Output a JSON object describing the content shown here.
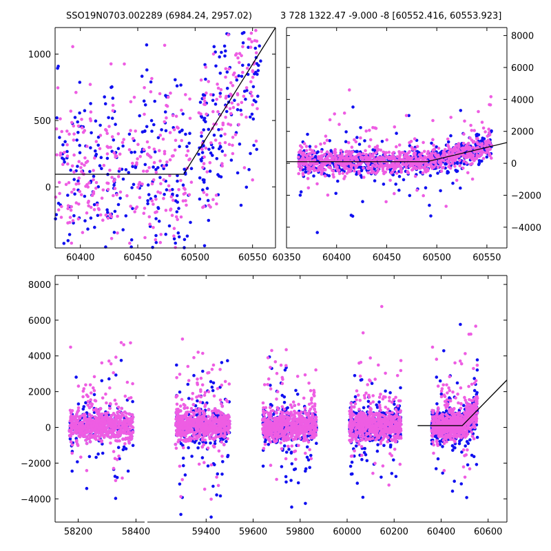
{
  "titles": {
    "left": "SSO19N0703.002289 (6984.24, 2957.02)",
    "right": "3 728 1322.47 -9.000 -8 [60552.416, 60553.923]"
  },
  "colors": {
    "blue": "#1010f0",
    "magenta": "#ee5de3",
    "line": "#000000"
  },
  "chart_data": [
    {
      "type": "scatter",
      "title": "SSO19N0703.002289 (6984.24, 2957.02)",
      "xlim": [
        60378,
        60570
      ],
      "ylim": [
        -460,
        1200
      ],
      "xticks": [
        60400,
        60450,
        60500,
        60550
      ],
      "xtick_labels": [
        "60400",
        "60450",
        "60500",
        "60550"
      ],
      "yticks": [
        0,
        500,
        1000
      ],
      "ytick_labels": [
        "0",
        "500",
        "1000"
      ],
      "series": [
        {
          "color": "#1010f0",
          "approx_count": 380
        },
        {
          "color": "#ee5de3",
          "approx_count": 420
        }
      ],
      "model_line": {
        "x": [
          60378,
          60490,
          60570
        ],
        "y": [
          95,
          95,
          1200
        ]
      }
    },
    {
      "type": "scatter",
      "title": "3 728 1322.47 -9.000 -8 [60552.416, 60553.923]",
      "xlim": [
        60350,
        60570
      ],
      "ylim": [
        -5300,
        8500
      ],
      "xticks": [
        60350,
        60400,
        60450,
        60500,
        60550
      ],
      "xtick_labels": [
        "60350",
        "60400",
        "60450",
        "60500",
        "60550"
      ],
      "yticks": [
        -4000,
        -2000,
        0,
        2000,
        4000,
        6000,
        8000
      ],
      "ytick_labels": [
        "−4000",
        "−2000",
        "0",
        "2000",
        "4000",
        "6000",
        "8000"
      ],
      "yaxis_side": "right",
      "series": [
        {
          "color": "#1010f0",
          "approx_count": 700
        },
        {
          "color": "#ee5de3",
          "approx_count": 850
        }
      ],
      "model_line": {
        "x": [
          60350,
          60490,
          60570
        ],
        "y": [
          100,
          100,
          1300
        ]
      }
    },
    {
      "type": "scatter",
      "xlim_segments": [
        [
          58120,
          58430
        ],
        [
          59150,
          60680
        ]
      ],
      "ylim": [
        -5300,
        8500
      ],
      "xticks": [
        58200,
        58400,
        59400,
        59600,
        59800,
        60000,
        60200,
        60400,
        60600
      ],
      "xtick_labels": [
        "58200",
        "58400",
        "59400",
        "59600",
        "59800",
        "60000",
        "60200",
        "60400",
        "60600"
      ],
      "yticks": [
        -4000,
        -2000,
        0,
        2000,
        4000,
        6000,
        8000
      ],
      "ytick_labels": [
        "−4000",
        "−2000",
        "0",
        "2000",
        "4000",
        "6000",
        "8000"
      ],
      "seasons": [
        [
          58170,
          58390
        ],
        [
          59270,
          59500
        ],
        [
          59640,
          59870
        ],
        [
          60010,
          60230
        ],
        [
          60360,
          60555
        ]
      ],
      "series": [
        {
          "color": "#1010f0",
          "approx_count": 2500
        },
        {
          "color": "#ee5de3",
          "approx_count": 3000
        }
      ],
      "model_line": {
        "x": [
          60300,
          60490,
          60680
        ],
        "y": [
          100,
          100,
          2650
        ]
      }
    }
  ]
}
